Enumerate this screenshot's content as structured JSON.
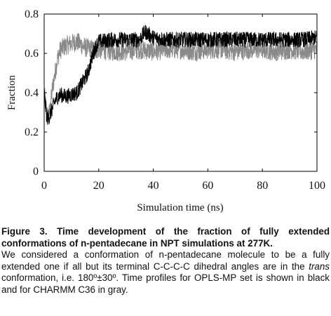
{
  "chart_data": {
    "type": "line",
    "title": "",
    "xlabel": "Simulation time (ns)",
    "ylabel": "Fraction",
    "xlim": [
      0,
      100
    ],
    "ylim": [
      0,
      0.8
    ],
    "xticks": [
      0,
      20,
      40,
      60,
      80,
      100
    ],
    "yticks": [
      0,
      0.2,
      0.4,
      0.6,
      0.8
    ],
    "grid": false,
    "legend": "none",
    "series": [
      {
        "color": "#8a8a8a",
        "x": [
          0,
          1,
          2,
          3,
          4,
          5,
          6,
          8,
          10,
          12,
          15,
          18,
          20,
          25,
          30,
          35,
          40,
          45,
          50,
          55,
          60,
          65,
          70,
          75,
          80,
          85,
          90,
          95,
          100
        ],
        "values": [
          0.4,
          0.28,
          0.3,
          0.42,
          0.5,
          0.58,
          0.62,
          0.64,
          0.65,
          0.66,
          0.63,
          0.62,
          0.62,
          0.61,
          0.61,
          0.62,
          0.61,
          0.62,
          0.62,
          0.61,
          0.62,
          0.62,
          0.61,
          0.62,
          0.62,
          0.61,
          0.62,
          0.61,
          0.62
        ]
      },
      {
        "color": "#000000",
        "x": [
          0,
          1,
          2,
          3,
          4,
          5,
          6,
          8,
          10,
          12,
          14,
          16,
          17,
          18,
          19,
          20,
          25,
          30,
          35,
          37,
          40,
          45,
          50,
          55,
          60,
          65,
          70,
          75,
          80,
          85,
          90,
          95,
          100
        ],
        "values": [
          0.4,
          0.27,
          0.28,
          0.32,
          0.36,
          0.38,
          0.39,
          0.38,
          0.39,
          0.4,
          0.45,
          0.5,
          0.55,
          0.6,
          0.64,
          0.66,
          0.67,
          0.67,
          0.67,
          0.71,
          0.68,
          0.67,
          0.67,
          0.67,
          0.67,
          0.67,
          0.67,
          0.67,
          0.67,
          0.67,
          0.67,
          0.67,
          0.68
        ]
      }
    ]
  },
  "caption": {
    "title": "Figure 3. Time development of the fraction of fully extended conformations of n-pentadecane in NPT simulations at 277K.",
    "body_part1": "We considered a conformation of n-pentadecane molecule to be a fully extended one if all but its terminal C-C-C-C dihedral angles are in the ",
    "body_italic": "trans",
    "body_part2": " conformation, i.e. 180º±30º. Time profiles for OPLS-MP set is shown in black and for CHARMM C36 in gray."
  }
}
